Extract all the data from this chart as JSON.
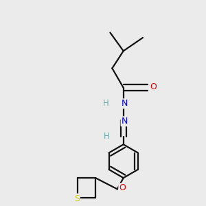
{
  "bg_color": "#ebebeb",
  "atom_colors": {
    "H": "#5fafaf",
    "N": "#0000ee",
    "O": "#ee0000",
    "S": "#cccc00"
  },
  "bond_color": "#111111",
  "bond_width": 1.6,
  "dbo": 0.012,
  "figsize": [
    3.0,
    3.0
  ],
  "dpi": 100
}
